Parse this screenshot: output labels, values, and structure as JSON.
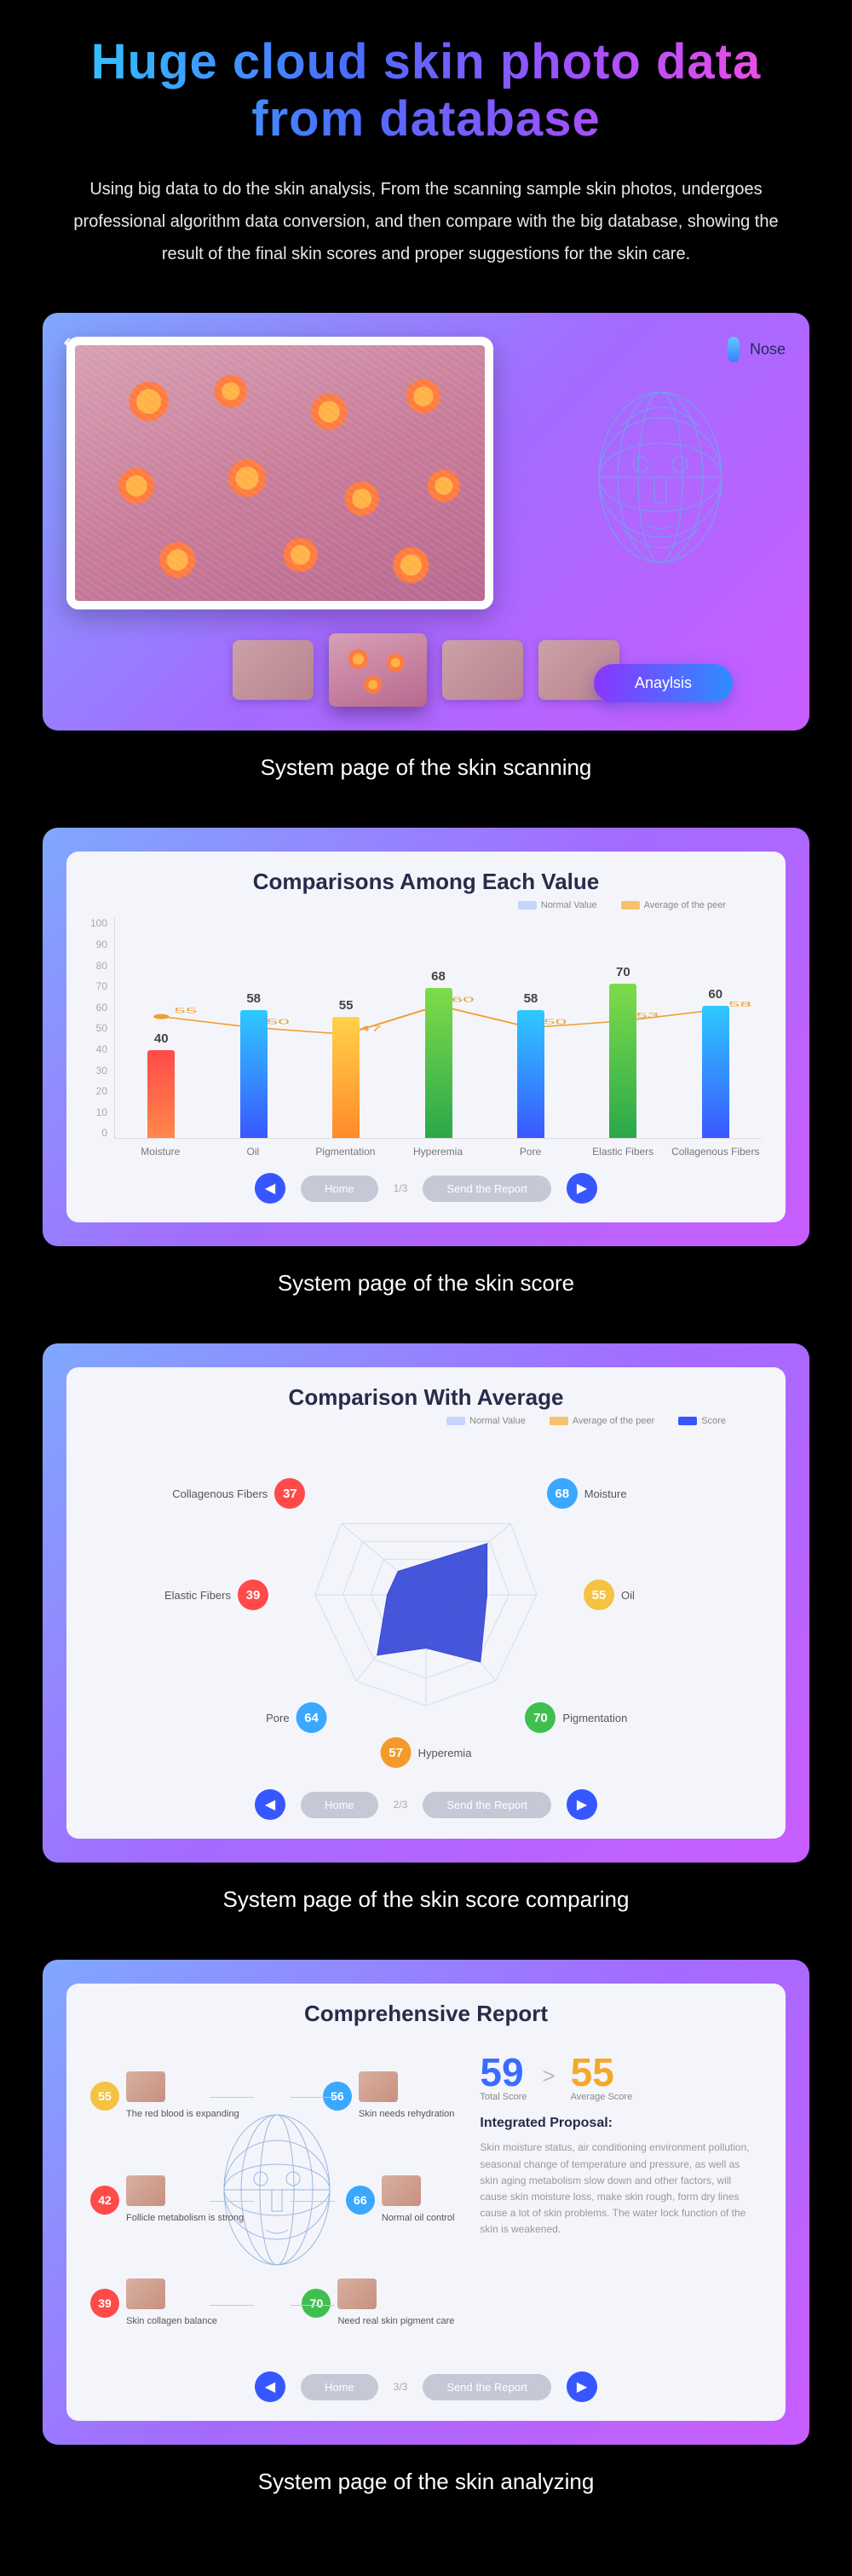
{
  "headline": {
    "line1": "Huge cloud skin photo data",
    "line2": "from database"
  },
  "intro": "Using big data to do the skin analysis, From the scanning sample skin photos, undergoes professional algorithm data conversion, and then compare with the big database, showing the result of the final skin scores and proper suggestions for the skin care.",
  "panel1": {
    "nose_label": "Nose",
    "analysis_button": "Anaylsis",
    "caption": "System page of the skin scanning"
  },
  "panel2": {
    "title": "Comparisons Among Each Value",
    "legend": {
      "normal": "Normal Value",
      "average": "Average of the peer",
      "normal_color": "#c7d4ff",
      "average_color": "#f5c26b"
    },
    "y_axis": {
      "min": 0,
      "max": 100,
      "step": 10
    },
    "bars": [
      {
        "label": "Moisture",
        "value": 40,
        "peer": 55,
        "colors": [
          "#ff4a4a",
          "#ff884a"
        ]
      },
      {
        "label": "Oil",
        "value": 58,
        "peer": 50,
        "colors": [
          "#2ec9ff",
          "#3a57ff"
        ]
      },
      {
        "label": "Pigmentation",
        "value": 55,
        "peer": 47,
        "colors": [
          "#ffd24a",
          "#ff8a2a"
        ]
      },
      {
        "label": "Hyperemia",
        "value": 68,
        "peer": 60,
        "colors": [
          "#7edc4a",
          "#2aa84a"
        ]
      },
      {
        "label": "Pore",
        "value": 58,
        "peer": 50,
        "colors": [
          "#2ec9ff",
          "#3a57ff"
        ]
      },
      {
        "label": "Elastic Fibers",
        "value": 70,
        "peer": 53,
        "colors": [
          "#7edc4a",
          "#2aa84a"
        ]
      },
      {
        "label": "Collagenous Fibers",
        "value": 60,
        "peer": 58,
        "colors": [
          "#2ec9ff",
          "#3a57ff"
        ]
      }
    ],
    "nav": {
      "home": "Home",
      "page": "1/3",
      "send": "Send the Report"
    },
    "caption": "System page of the skin score"
  },
  "panel3": {
    "title": "Comparison With Average",
    "legend": {
      "normal": "Normal Value",
      "average": "Average of the peer",
      "score": "Score",
      "normal_color": "#c7d4ff",
      "average_color": "#f5c26b",
      "score_color": "#3657ff"
    },
    "metrics": [
      {
        "label": "Moisture",
        "value": 68,
        "color": "#3aa8ff",
        "angle": 40
      },
      {
        "label": "Oil",
        "value": 55,
        "color": "#f5c242",
        "angle": 0
      },
      {
        "label": "Pigmentation",
        "value": 70,
        "color": "#3fbf4f",
        "angle": -51
      },
      {
        "label": "Hyperemia",
        "value": 57,
        "color": "#f59a2a",
        "angle": -90
      },
      {
        "label": "Pore",
        "value": 64,
        "color": "#3aa8ff",
        "angle": -129
      },
      {
        "label": "Elastic Fibers",
        "value": 39,
        "color": "#ff4a4a",
        "angle": 180
      },
      {
        "label": "Collagenous Fibers",
        "value": 37,
        "color": "#ff4a4a",
        "angle": 140
      }
    ],
    "radar_values": [
      0.72,
      0.55,
      0.78,
      0.48,
      0.7,
      0.35,
      0.33
    ],
    "radar_fill": "#3648d8",
    "grid_color": "#d8dce8",
    "nav": {
      "home": "Home",
      "page": "2/3",
      "send": "Send the Report"
    },
    "caption": "System page of the skin score comparing"
  },
  "panel4": {
    "title": "Comprehensive Report",
    "left_items": [
      {
        "value": 55,
        "color": "#f5c242",
        "text": "The red blood is expanding",
        "side": "L",
        "y": 12
      },
      {
        "value": 42,
        "color": "#ff4a4a",
        "text": "Follicle metabolism is strong",
        "side": "L",
        "y": 44
      },
      {
        "value": 39,
        "color": "#ff4a4a",
        "text": "Skin collagen balance",
        "side": "L",
        "y": 76
      },
      {
        "value": 56,
        "color": "#3aa8ff",
        "text": "Skin needs rehydration",
        "side": "R",
        "y": 12
      },
      {
        "value": 66,
        "color": "#3aa8ff",
        "text": "Normal oil control",
        "side": "R",
        "y": 44
      },
      {
        "value": 70,
        "color": "#3fbf4f",
        "text": "Need real skin pigment care",
        "side": "R",
        "y": 76
      }
    ],
    "scores": {
      "total": 59,
      "total_label": "Total Score",
      "total_color": "#3a6dff",
      "avg": 55,
      "avg_label": "Average Score",
      "avg_color": "#f5a82a"
    },
    "proposal_title": "Integrated Proposal:",
    "proposal_body": "Skin moisture status, air conditioning environment pollution, seasonal change of temperature and pressure, as well as skin aging metabolism slow down and other factors, will cause skin moisture loss, make skin rough, form dry lines cause a lot of skin problems. The water lock function of the skin is weakened.",
    "nav": {
      "home": "Home",
      "page": "3/3",
      "send": "Send the Report"
    },
    "caption": "System page of the skin analyzing"
  }
}
